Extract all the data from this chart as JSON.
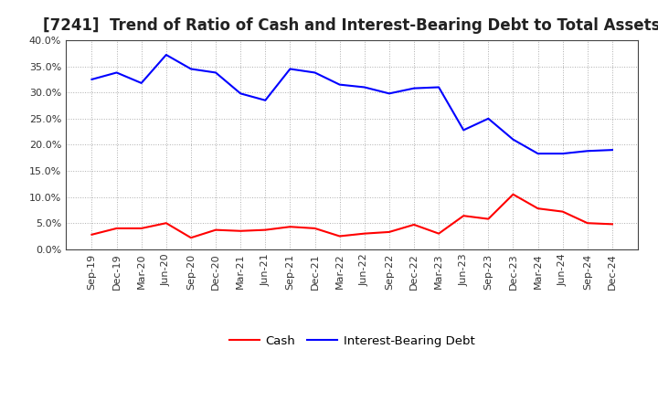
{
  "title": "[7241]  Trend of Ratio of Cash and Interest-Bearing Debt to Total Assets",
  "x_labels": [
    "Sep-19",
    "Dec-19",
    "Mar-20",
    "Jun-20",
    "Sep-20",
    "Dec-20",
    "Mar-21",
    "Jun-21",
    "Sep-21",
    "Dec-21",
    "Mar-22",
    "Jun-22",
    "Sep-22",
    "Dec-22",
    "Mar-23",
    "Jun-23",
    "Sep-23",
    "Dec-23",
    "Mar-24",
    "Jun-24",
    "Sep-24",
    "Dec-24"
  ],
  "cash": [
    2.8,
    4.0,
    4.0,
    5.0,
    2.2,
    3.7,
    3.5,
    3.7,
    4.3,
    4.0,
    2.5,
    3.0,
    3.3,
    4.7,
    3.0,
    6.4,
    5.8,
    10.5,
    7.8,
    7.2,
    5.0,
    4.8
  ],
  "interest_bearing_debt": [
    32.5,
    33.8,
    31.8,
    37.2,
    34.5,
    33.8,
    29.8,
    28.5,
    34.5,
    33.8,
    31.5,
    31.0,
    29.8,
    30.8,
    31.0,
    22.8,
    25.0,
    21.0,
    18.3,
    18.3,
    18.8,
    19.0
  ],
  "cash_color": "#FF0000",
  "debt_color": "#0000FF",
  "ylim": [
    0,
    40
  ],
  "yticks": [
    0,
    5,
    10,
    15,
    20,
    25,
    30,
    35,
    40
  ],
  "background_color": "#FFFFFF",
  "plot_bg_color": "#FFFFFF",
  "legend_cash": "Cash",
  "legend_debt": "Interest-Bearing Debt",
  "title_fontsize": 12,
  "axis_fontsize": 8,
  "legend_fontsize": 9.5,
  "line_width": 1.5,
  "title_color": "#222222",
  "grid_color": "#999999",
  "spine_color": "#444444"
}
